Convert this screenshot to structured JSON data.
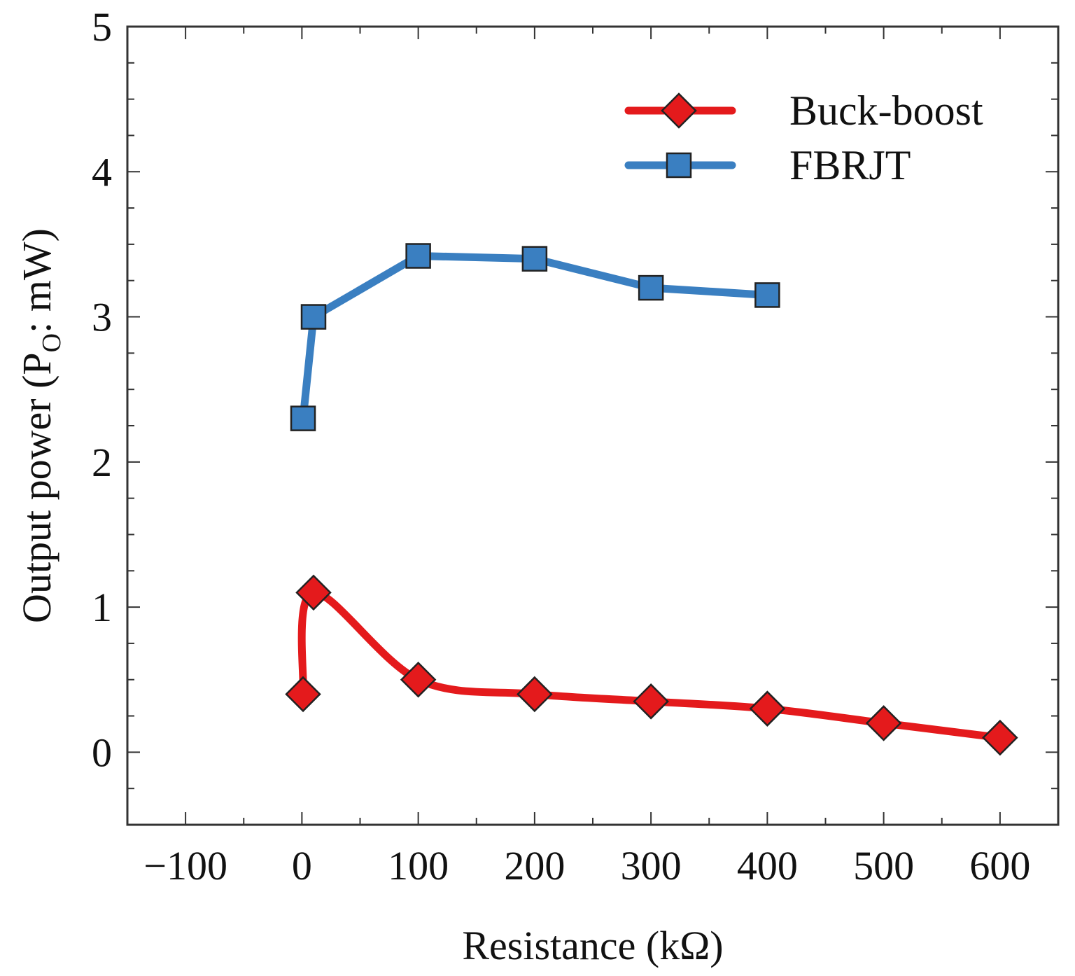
{
  "chart_data": {
    "type": "line",
    "xlabel": "Resistance (kΩ)",
    "ylabel": {
      "prefix": "Output power (P",
      "subscript": "O",
      "suffix": ": mW)"
    },
    "xlim": [
      -150,
      650
    ],
    "ylim": [
      -0.5,
      5
    ],
    "xticks": [
      -100,
      0,
      100,
      200,
      300,
      400,
      500,
      600
    ],
    "xtick_labels": [
      "−100",
      "0",
      "100",
      "200",
      "300",
      "400",
      "500",
      "600"
    ],
    "yticks": [
      0,
      1,
      2,
      3,
      4,
      5
    ],
    "ytick_labels": [
      "0",
      "1",
      "2",
      "3",
      "4",
      "5"
    ],
    "legend_position": "top-right",
    "series": [
      {
        "name": "Buck-boost",
        "color": "#e41a1c",
        "marker": "diamond",
        "smooth": true,
        "x": [
          1,
          10,
          100,
          200,
          300,
          400,
          500,
          600
        ],
        "y": [
          0.4,
          1.1,
          0.5,
          0.4,
          0.35,
          0.3,
          0.2,
          0.1
        ]
      },
      {
        "name": "FBRJT",
        "color": "#3a7fc1",
        "marker": "square",
        "smooth": false,
        "x": [
          1,
          10,
          100,
          200,
          300,
          400
        ],
        "y": [
          2.3,
          3.0,
          3.42,
          3.4,
          3.2,
          3.15
        ]
      }
    ]
  }
}
